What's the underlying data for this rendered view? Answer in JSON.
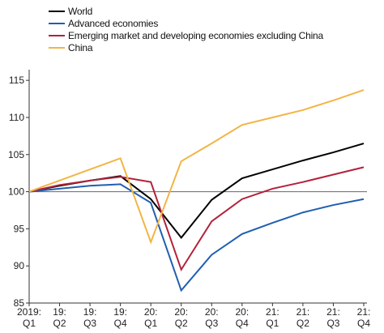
{
  "chart_data": {
    "type": "line",
    "categories": [
      [
        "2019:",
        "Q1"
      ],
      [
        "19:",
        "Q2"
      ],
      [
        "19:",
        "Q3"
      ],
      [
        "19:",
        "Q4"
      ],
      [
        "20:",
        "Q1"
      ],
      [
        "20:",
        "Q2"
      ],
      [
        "20:",
        "Q3"
      ],
      [
        "20:",
        "Q4"
      ],
      [
        "21:",
        "Q1"
      ],
      [
        "21:",
        "Q2"
      ],
      [
        "21:",
        "Q3"
      ],
      [
        "21:",
        "Q4"
      ]
    ],
    "yticks": [
      "85",
      "90",
      "95",
      "100",
      "105",
      "110",
      "115"
    ],
    "ylim": [
      85,
      116
    ],
    "reference_line": 100,
    "legend_position": "top-left",
    "x_points_per_quarter": 2,
    "series": [
      {
        "name": "World",
        "color": "#000000",
        "values": [
          100,
          100.8,
          101.5,
          102.1,
          99,
          93.8,
          98.9,
          101.8,
          103,
          104.2,
          105.3,
          106.5
        ]
      },
      {
        "name": "Advanced economies",
        "color": "#1f5fb0",
        "values": [
          100,
          100.4,
          100.8,
          101,
          98.5,
          86.7,
          91.5,
          94.3,
          95.8,
          97.2,
          98.2,
          99
        ]
      },
      {
        "name": "Emerging market and developing economies excluding China",
        "color": "#b3213b",
        "values": [
          100,
          100.9,
          101.5,
          102,
          101.3,
          89.5,
          96,
          99,
          100.4,
          101.3,
          102.3,
          103.3
        ]
      },
      {
        "name": "China",
        "color": "#f2b545",
        "values": [
          100,
          101.5,
          103,
          104.5,
          93.2,
          104.1,
          106.5,
          109,
          110,
          111,
          112.3,
          113.7
        ]
      }
    ]
  }
}
